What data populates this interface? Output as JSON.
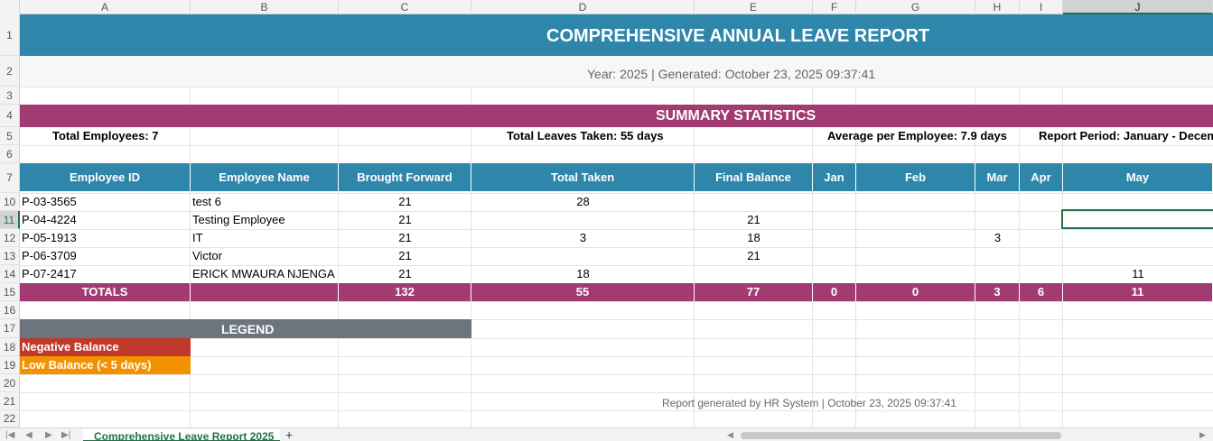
{
  "columns": [
    "A",
    "B",
    "C",
    "D",
    "E",
    "F",
    "G",
    "H",
    "I",
    "J"
  ],
  "rows": [
    "1",
    "2",
    "3",
    "4",
    "5",
    "6",
    "7",
    "10",
    "11",
    "12",
    "13",
    "14",
    "15",
    "16",
    "17",
    "18",
    "19",
    "20",
    "21",
    "22"
  ],
  "active_column": "J",
  "active_row": "11",
  "report": {
    "title": "COMPREHENSIVE ANNUAL LEAVE REPORT",
    "subtitle": "Year: 2025 | Generated: October 23, 2025 09:37:41"
  },
  "summary": {
    "title": "SUMMARY STATISTICS",
    "total_employees": "Total Employees: 7",
    "total_leaves": "Total Leaves Taken: 55 days",
    "average": "Average per Employee: 7.9 days",
    "period": "Report Period: January - December"
  },
  "table": {
    "headers": [
      "Employee ID",
      "Employee Name",
      "Brought Forward",
      "Total Taken",
      "Final Balance",
      "Jan",
      "Feb",
      "Mar",
      "Apr",
      "May"
    ],
    "rows": [
      {
        "id": "P-03-3565",
        "name": "test 6",
        "bf": "21",
        "taken": "28",
        "balance": "",
        "jan": "",
        "feb": "",
        "mar": "",
        "apr": "",
        "may": ""
      },
      {
        "id": "P-04-4224",
        "name": "Testing Employee",
        "bf": "21",
        "taken": "",
        "balance": "21",
        "jan": "",
        "feb": "",
        "mar": "",
        "apr": "",
        "may": ""
      },
      {
        "id": "P-05-1913",
        "name": "IT",
        "bf": "21",
        "taken": "3",
        "balance": "18",
        "jan": "",
        "feb": "",
        "mar": "3",
        "apr": "",
        "may": ""
      },
      {
        "id": "P-06-3709",
        "name": "Victor",
        "bf": "21",
        "taken": "",
        "balance": "21",
        "jan": "",
        "feb": "",
        "mar": "",
        "apr": "",
        "may": ""
      },
      {
        "id": "P-07-2417",
        "name": "ERICK MWAURA NJENGA",
        "bf": "21",
        "taken": "18",
        "balance": "",
        "jan": "",
        "feb": "",
        "mar": "",
        "apr": "",
        "may": "11"
      }
    ],
    "totals": {
      "label": "TOTALS",
      "bf": "132",
      "taken": "55",
      "balance": "77",
      "jan": "0",
      "feb": "0",
      "mar": "3",
      "apr": "6",
      "may": "11"
    }
  },
  "legend": {
    "title": "LEGEND",
    "negative": "Negative Balance",
    "low": "Low Balance (< 5 days)",
    "negative_color": "#c0392b",
    "low_color": "#f39200"
  },
  "footer_note": "Report generated by HR System | October 23, 2025 09:37:41",
  "sheet_tab": "Comprehensive Leave Report 2025",
  "add_sheet": "+",
  "colors": {
    "header_blue": "#2e86ab",
    "accent_magenta": "#a23b72",
    "legend_gray": "#6c757d",
    "excel_green": "#217346"
  }
}
